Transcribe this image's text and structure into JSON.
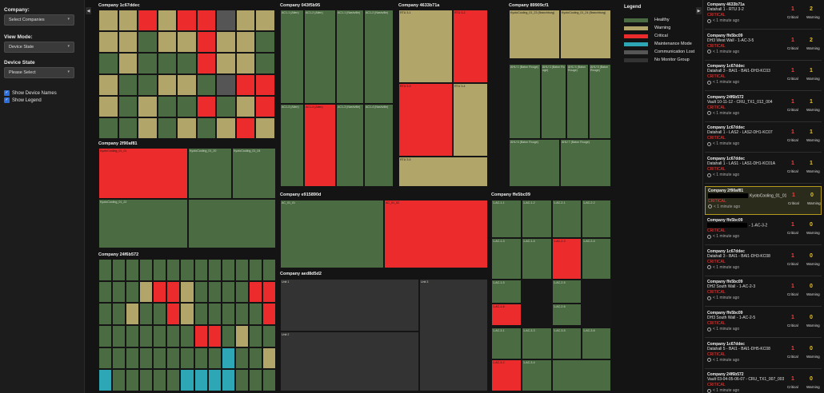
{
  "sidebar": {
    "company_label": "Company:",
    "company_value": "Select Companies",
    "view_label": "View Mode:",
    "view_value": "Device State",
    "state_label": "Device State",
    "state_value": "Please Select",
    "show_names": "Show Device Names",
    "show_legend": "Show Legend"
  },
  "groups": {
    "g1": "Company 1c67ddec",
    "g2": "Company 043f5b95",
    "g3": "Company 4633b71a",
    "g4": "Company 89909cf1",
    "g5": "Company 2f90af81",
    "g6": "Company e915890d",
    "g7": "Company ffe5bc09",
    "g8": "Company 24f6b572",
    "g9": "Company aed8d5d2"
  },
  "legend": {
    "title": "Legend",
    "items": [
      {
        "label": "Healthy",
        "color": "#4b6b42"
      },
      {
        "label": "Warning",
        "color": "#b2a56a"
      },
      {
        "label": "Critical",
        "color": "#ec2c2c"
      },
      {
        "label": "Maintenance Mode",
        "color": "#2da6b6"
      },
      {
        "label": "Communication Lost",
        "color": "#555555"
      },
      {
        "label": "No Monitor Group",
        "color": "#333333"
      }
    ]
  },
  "alerts": [
    {
      "company": "Company 4633b71a",
      "device": "Datahall 1 - RTU 3-2",
      "status": "CRITICAL",
      "time": "< 1 minute ago",
      "critical": "1",
      "warning": "2"
    },
    {
      "company": "Company ffe5bc09",
      "device": "DH3 West Wall - 1-AC-3-5",
      "status": "CRITICAL",
      "time": "< 1 minute ago",
      "critical": "1",
      "warning": "2"
    },
    {
      "company": "Company 1c67ddec",
      "device": "Datahall 3 - BAI1 - BAI1-DH3-KC03",
      "status": "CRITICAL",
      "time": "< 1 minute ago",
      "critical": "1",
      "warning": "1"
    },
    {
      "company": "Company 24f6b572",
      "device": "Vault 10-11-12 - CRU_TX1_012_004",
      "status": "CRITICAL",
      "time": "< 1 minute ago",
      "critical": "1",
      "warning": "1"
    },
    {
      "company": "Company 1c67ddec",
      "device": "Datahall 1 - LAS2 - LAS2-DH1-KC07",
      "status": "CRITICAL",
      "time": "< 1 minute ago",
      "critical": "1",
      "warning": "1"
    },
    {
      "company": "Company 1c67ddec",
      "device": "Datahall 1 - LAS1 - LAS1-DH1-KC01A",
      "status": "CRITICAL",
      "time": "< 1 minute ago",
      "critical": "1",
      "warning": "1"
    },
    {
      "company": "Company 2f90af81",
      "device": "KyotoCooling_01_01",
      "status": "CRITICAL",
      "time": "< 1 minute ago",
      "critical": "1",
      "warning": "0"
    },
    {
      "company": "Company ffe5bc09",
      "device": "- 1-AC-3-2",
      "status": "CRITICAL",
      "time": "< 1 minute ago",
      "critical": "1",
      "warning": "0"
    },
    {
      "company": "Company 1c67ddec",
      "device": "Datahall 3 - BAI1 - BAI1-DH3-KC08",
      "status": "CRITICAL",
      "time": "< 1 minute ago",
      "critical": "1",
      "warning": "0"
    },
    {
      "company": "Company ffe5bc09",
      "device": "DH2 South Wall - 1-AC-2-3",
      "status": "CRITICAL",
      "time": "< 1 minute ago",
      "critical": "1",
      "warning": "0"
    },
    {
      "company": "Company ffe5bc09",
      "device": "DH3 South Wall - 1-AC-2-5",
      "status": "CRITICAL",
      "time": "< 1 minute ago",
      "critical": "1",
      "warning": "0"
    },
    {
      "company": "Company 1c67ddec",
      "device": "Datahall 5 - BAI1 - BAI1-DH5-KC08",
      "status": "CRITICAL",
      "time": "< 1 minute ago",
      "critical": "1",
      "warning": "0"
    },
    {
      "company": "Company 24f6b572",
      "device": "Vault 03-04-05-06-07 - CRU_TX1_007_003",
      "status": "CRITICAL",
      "time": "< 1 minute ago",
      "critical": "1",
      "warning": "0"
    }
  ],
  "labels": {
    "critical": "Critical",
    "warning": "Warning"
  },
  "cells": {
    "g2": [
      "AC1-1 (Allen)",
      "AC1-2 (Allen)",
      "AC1-1 (Nashville)",
      "AC1-2 (Nashville)",
      "AC1-3 (Allen)",
      "AC1-4 (Allen)",
      "AC1-3 (Nashville)",
      "AC1-4 (Nashville)"
    ],
    "g3": [
      "RTU 3-1",
      "RTU 3-2",
      "RTU 3-3",
      "RTU 3-4",
      "RTU 3-5"
    ],
    "g4": [
      "KyotoCooling_01_23 (Branchburg)",
      "KyotoCooling_01_24 (Branchburg)",
      "AHU 1 (Baton Rouge)",
      "AHU 3 (Baton Rouge)",
      "AHU 4 (Baton Rouge)",
      "AHU 5 (Baton Rouge)",
      "AHU 6 (Baton Rouge)",
      "AHU 7 (Baton Rouge)"
    ],
    "g5": [
      "KyotoCooling_01_01",
      "KyotoCooling_01_20",
      "KyotoCooling_01_04",
      "KyotoCooling_01_22"
    ],
    "g6": [
      "AC_01_01",
      "AC_01_02"
    ],
    "g9": [
      "Unit 1",
      "Unit 2",
      "Unit 3"
    ],
    "g7": [
      "1-AC-1-1",
      "1-AC-1-2",
      "1-AC-2-1",
      "1-AC-2-2",
      "1-AC-1-3",
      "1-AC-1-4",
      "1-AC-2-3",
      "1-AC-2-4",
      "1-AC-1-5",
      "1-AC-2-5",
      "1-AC-1-6",
      "1-AC-2-6",
      "1-AC-3-1",
      "1-AC-3-3",
      "1-AC-3-5",
      "1-AC-3-6",
      "1-AC-3-2",
      "1-AC-3-4"
    ]
  }
}
